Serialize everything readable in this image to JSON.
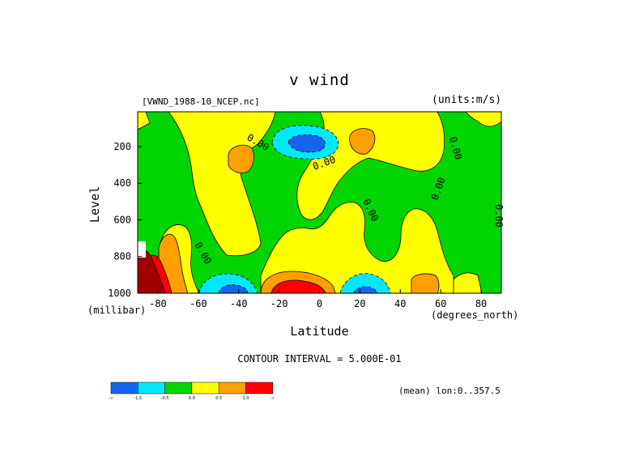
{
  "chart_data": {
    "type": "heatmap",
    "title": "v wind",
    "file_label": "[VWND_1988-10_NCEP.nc]",
    "units_label": "(units:m/s)",
    "ylabel": "Level",
    "ylabel_units": "(millibar)",
    "xlabel": "Latitude",
    "xlabel_units": "(degrees_north)",
    "contour_interval_label": "CONTOUR INTERVAL = 5.000E-01",
    "footer": "(mean) lon:0..357.5",
    "xlim": [
      -90,
      90
    ],
    "ylim": [
      1000,
      10
    ],
    "x_ticks": [
      -80,
      -60,
      -40,
      -20,
      0,
      20,
      40,
      60,
      80
    ],
    "y_ticks": [
      200,
      400,
      600,
      800,
      1000
    ],
    "contour_labels": [
      "0.00",
      "0.00",
      "0.00",
      "0.00",
      "0.00",
      "0.00",
      "0.00"
    ],
    "colorbar": {
      "colors": [
        "#1464f0",
        "#00e8ff",
        "#00d500",
        "#ffff00",
        "#ffa000",
        "#ff0000"
      ],
      "labels": [
        "-∞",
        "-1.5",
        "-0.5",
        "0.0",
        "0.5",
        "1.0",
        "∞"
      ]
    }
  }
}
